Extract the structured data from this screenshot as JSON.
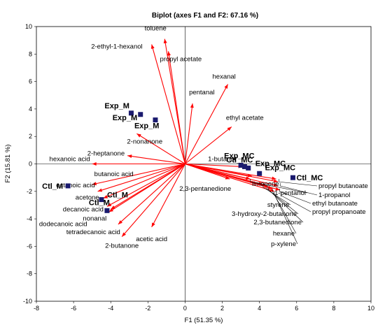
{
  "chart_data": {
    "type": "scatter",
    "title": "Biplot (axes F1 and F2: 67.16 %)",
    "xlabel": "F1 (51.35 %)",
    "ylabel": "F2 (15.81 %)",
    "xlim": [
      -8,
      10
    ],
    "ylim": [
      -10,
      10
    ],
    "xticks": [
      -8,
      -6,
      -4,
      -2,
      0,
      2,
      4,
      6,
      8,
      10
    ],
    "yticks": [
      -10,
      -8,
      -6,
      -4,
      -2,
      0,
      2,
      4,
      6,
      8,
      10
    ],
    "grid": false,
    "colors": {
      "vector": "#ff0000",
      "observation": "#1a1a6e",
      "connector": "#000000"
    },
    "variables": [
      {
        "name": "toluene",
        "x": -1.1,
        "y": 9.1
      },
      {
        "name": "2-ethyl-1-hexanol",
        "x": -1.8,
        "y": 8.7
      },
      {
        "name": "propyl acetate",
        "x": -0.9,
        "y": 8.2
      },
      {
        "name": "hexanal",
        "x": 2.3,
        "y": 5.8
      },
      {
        "name": "pentanal",
        "x": 0.4,
        "y": 4.4
      },
      {
        "name": "ethyl acetate",
        "x": 2.5,
        "y": 2.7
      },
      {
        "name": "2-nonanone",
        "x": -2.6,
        "y": 2.2
      },
      {
        "name": "2-heptanone",
        "x": -3.1,
        "y": 0.6
      },
      {
        "name": "hexanoic acid",
        "x": -5.0,
        "y": 0.0
      },
      {
        "name": "butanoic acid",
        "x": -5.0,
        "y": -1.5
      },
      {
        "name": "octanoic acid",
        "x": -4.7,
        "y": -2.0
      },
      {
        "name": "acetone",
        "x": -4.4,
        "y": -2.5
      },
      {
        "name": "decanoic acid",
        "x": -4.2,
        "y": -3.1
      },
      {
        "name": "dodecanoic acid",
        "x": -4.1,
        "y": -3.5
      },
      {
        "name": "nonanal",
        "x": -4.0,
        "y": -3.3
      },
      {
        "name": "tetradecanoic acid",
        "x": -3.6,
        "y": -4.4
      },
      {
        "name": "2-butanone",
        "x": -3.4,
        "y": -5.3
      },
      {
        "name": "acetic acid",
        "x": -1.8,
        "y": -4.6
      },
      {
        "name": "1-butanol",
        "x": 3.1,
        "y": -0.2
      },
      {
        "name": "limonene",
        "x": 3.6,
        "y": -0.9
      },
      {
        "name": "2,3-pentanedione",
        "x": 2.4,
        "y": -1.1
      },
      {
        "name": "1-pentanol",
        "x": 3.5,
        "y": -1.1
      },
      {
        "name": "styrene",
        "x": 4.2,
        "y": -1.5
      },
      {
        "name": "3-hydroxy-2-butanone",
        "x": 4.4,
        "y": -1.6
      },
      {
        "name": "2,3-butanedione",
        "x": 4.5,
        "y": -1.7
      },
      {
        "name": "hexane",
        "x": 4.7,
        "y": -1.8
      },
      {
        "name": "p-xylene",
        "x": 4.8,
        "y": -2.0
      },
      {
        "name": "propyl butanoate",
        "x": 4.9,
        "y": -1.1
      },
      {
        "name": "1-propanol",
        "x": 5.0,
        "y": -1.3
      },
      {
        "name": "ethyl butanoate",
        "x": 5.0,
        "y": -1.6
      },
      {
        "name": "propyl propanoate",
        "x": 5.1,
        "y": -1.9
      }
    ],
    "observations": [
      {
        "name": "Exp_M",
        "x": -2.9,
        "y": 3.7
      },
      {
        "name": "Exp_M",
        "x": -2.4,
        "y": 3.6
      },
      {
        "name": "Exp_M",
        "x": -1.6,
        "y": 3.2
      },
      {
        "name": "Exp_MC",
        "x": 3.0,
        "y": -0.1
      },
      {
        "name": "Exp_MC",
        "x": 3.4,
        "y": -0.3
      },
      {
        "name": "Exp_MC",
        "x": 4.0,
        "y": -0.7
      },
      {
        "name": "Ctl_MC",
        "x": 3.2,
        "y": -0.2
      },
      {
        "name": "Ctl_MC",
        "x": 5.8,
        "y": -1.0
      },
      {
        "name": "Ctl_M",
        "x": -6.3,
        "y": -1.6
      },
      {
        "name": "Ctl_M",
        "x": -4.5,
        "y": -2.6
      },
      {
        "name": "Ctl_M",
        "x": -4.2,
        "y": -3.4
      }
    ]
  }
}
